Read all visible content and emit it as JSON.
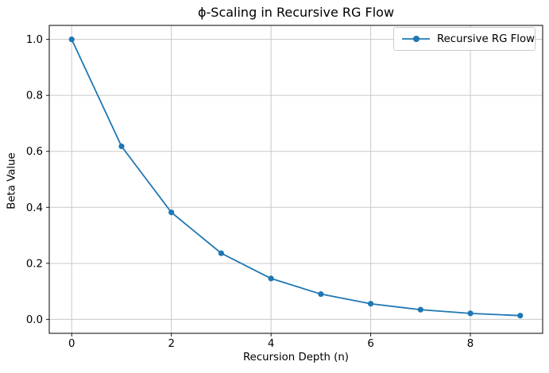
{
  "chart_data": {
    "type": "line",
    "title": "ϕ-Scaling in Recursive RG Flow",
    "xlabel": "Recursion Depth (n)",
    "ylabel": "Beta Value",
    "grid": true,
    "legend_position": "upper right",
    "xlim": [
      -0.45,
      9.45
    ],
    "ylim": [
      -0.05,
      1.05
    ],
    "xticks": [
      0,
      2,
      4,
      6,
      8
    ],
    "xticklabels": [
      "0",
      "2",
      "4",
      "6",
      "8"
    ],
    "yticks": [
      0.0,
      0.2,
      0.4,
      0.6,
      0.8,
      1.0
    ],
    "yticklabels": [
      "0.0",
      "0.2",
      "0.4",
      "0.6",
      "0.8",
      "1.0"
    ],
    "series": [
      {
        "name": "Recursive RG Flow",
        "color": "#1f77b4",
        "marker": "circle",
        "x": [
          0,
          1,
          2,
          3,
          4,
          5,
          6,
          7,
          8,
          9
        ],
        "y": [
          1.0,
          0.618,
          0.382,
          0.2361,
          0.1459,
          0.0902,
          0.0557,
          0.0344,
          0.0213,
          0.0132
        ]
      }
    ],
    "colors": {
      "line": "#1f77b4",
      "grid": "#c9c9c9",
      "spine": "#000000",
      "background": "#ffffff",
      "text": "#000000"
    }
  }
}
